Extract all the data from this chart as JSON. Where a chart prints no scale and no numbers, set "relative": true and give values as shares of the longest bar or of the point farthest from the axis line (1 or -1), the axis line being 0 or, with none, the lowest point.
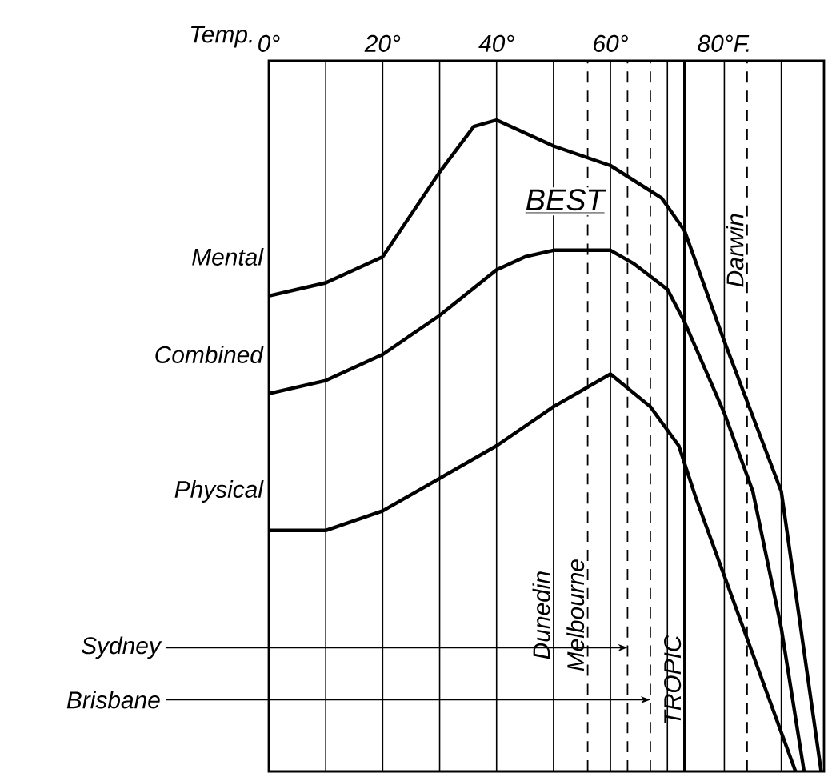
{
  "chart_data": {
    "type": "line",
    "relative": true,
    "xlabel": "Temp.",
    "xlim": [
      0,
      97.5
    ],
    "xticks": [
      {
        "value": 0,
        "label": "0°"
      },
      {
        "value": 10,
        "label": null
      },
      {
        "value": 20,
        "label": "20°"
      },
      {
        "value": 30,
        "label": null
      },
      {
        "value": 40,
        "label": "40°"
      },
      {
        "value": 50,
        "label": null
      },
      {
        "value": 60,
        "label": "60°"
      },
      {
        "value": 70,
        "label": null
      },
      {
        "value": 80,
        "label": "80°F."
      },
      {
        "value": 90,
        "label": null
      }
    ],
    "grid": "x",
    "line_style": "solid",
    "marker": "none",
    "series": [
      {
        "name": "Mental",
        "color": "#000000",
        "x": [
          0,
          10,
          20,
          30,
          36,
          40,
          50,
          60,
          69,
          73,
          80,
          90,
          97
        ],
        "values": [
          0.73,
          0.75,
          0.79,
          0.92,
          0.99,
          1.0,
          0.96,
          0.93,
          0.88,
          0.83,
          0.66,
          0.43,
          0
        ]
      },
      {
        "name": "Combined",
        "color": "#000000",
        "x": [
          0,
          10,
          20,
          30,
          40,
          45,
          50,
          60,
          64,
          70,
          73,
          80,
          85,
          90,
          94
        ],
        "values": [
          0.58,
          0.6,
          0.64,
          0.7,
          0.77,
          0.79,
          0.8,
          0.8,
          0.78,
          0.74,
          0.69,
          0.55,
          0.43,
          0.22,
          0
        ]
      },
      {
        "name": "Physical",
        "color": "#000000",
        "x": [
          0,
          10,
          20,
          30,
          40,
          50,
          60,
          67,
          72,
          75,
          80,
          90,
          92.5
        ],
        "values": [
          0.37,
          0.37,
          0.4,
          0.45,
          0.5,
          0.56,
          0.61,
          0.56,
          0.5,
          0.42,
          0.3,
          0.06,
          0
        ]
      }
    ],
    "ref_lines": [
      {
        "axis": "x",
        "value": 56,
        "label": "Melbourne",
        "line_style": "dashed"
      },
      {
        "axis": "x",
        "value": 63,
        "label": "Sydney",
        "line_style": "dashed"
      },
      {
        "axis": "x",
        "value": 67,
        "label": "Brisbane",
        "line_style": "dashed"
      },
      {
        "axis": "x",
        "value": 73,
        "label": "TROPIC",
        "line_style": "solid"
      },
      {
        "axis": "x",
        "value": 84,
        "label": "Darwin",
        "line_style": "dashed"
      }
    ],
    "annotations": [
      "BEST",
      "Dunedin"
    ]
  }
}
